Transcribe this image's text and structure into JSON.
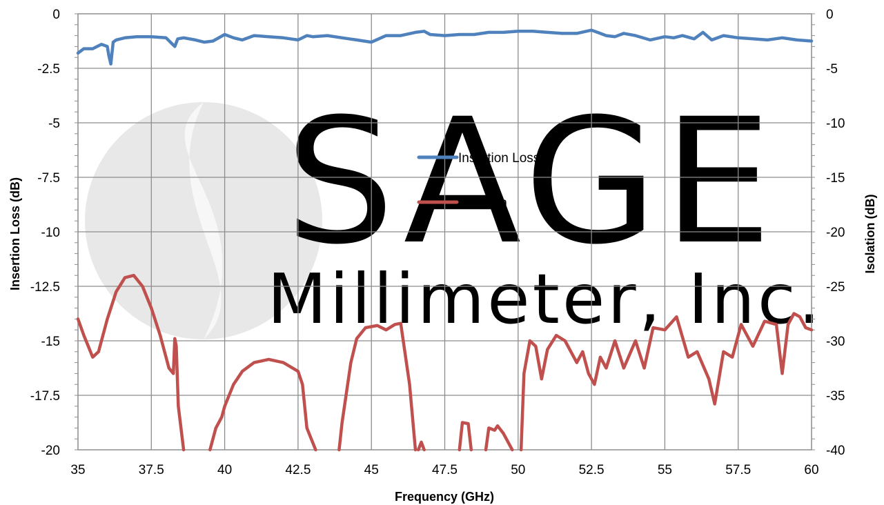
{
  "chart_data": {
    "type": "line",
    "xlabel": "Frequency (GHz)",
    "ylabel_left": "Insertion Loss (dB)",
    "ylabel_right": "Isolation (dB)",
    "xlim": [
      35,
      60
    ],
    "ylim_left": [
      -20,
      0
    ],
    "ylim_right": [
      -40,
      0
    ],
    "x_ticks": [
      "35",
      "37.5",
      "40",
      "42.5",
      "45",
      "47.5",
      "50",
      "52.5",
      "55",
      "57.5",
      "60"
    ],
    "y_ticks_left": [
      "0",
      "-2.5",
      "-5",
      "-7.5",
      "-10",
      "-12.5",
      "-15",
      "-17.5",
      "-20"
    ],
    "y_ticks_right": [
      "0",
      "-5",
      "-10",
      "-15",
      "-20",
      "-25",
      "-30",
      "-35",
      "-40"
    ],
    "grid": true,
    "legend_position": "center",
    "watermark": "SAGE Millimeter, Inc.",
    "series": [
      {
        "name": "Insertion Loss",
        "axis": "left",
        "color": "#4F81BD",
        "x": [
          35,
          35.2,
          35.5,
          35.8,
          36,
          36.05,
          36.12,
          36.2,
          36.3,
          36.6,
          37,
          37.5,
          38,
          38.3,
          38.4,
          38.6,
          39,
          39.3,
          39.6,
          40,
          40.3,
          40.6,
          41,
          41.5,
          42,
          42.5,
          42.8,
          43,
          43.5,
          44,
          44.5,
          45,
          45.5,
          46,
          46.5,
          46.8,
          47,
          47.5,
          48,
          48.5,
          49,
          49.5,
          50,
          50.5,
          51,
          51.5,
          52,
          52.5,
          52.8,
          53,
          53.3,
          53.6,
          54,
          54.5,
          55,
          55.3,
          55.6,
          56,
          56.3,
          56.6,
          57,
          57.5,
          58,
          58.5,
          59,
          59.5,
          60
        ],
        "y": [
          -1.8,
          -1.6,
          -1.6,
          -1.4,
          -1.5,
          -1.9,
          -2.3,
          -1.3,
          -1.2,
          -1.1,
          -1.05,
          -1.05,
          -1.1,
          -1.5,
          -1.15,
          -1.1,
          -1.2,
          -1.3,
          -1.25,
          -0.95,
          -1.1,
          -1.2,
          -1.0,
          -1.05,
          -1.1,
          -1.2,
          -1.0,
          -1.05,
          -1.0,
          -1.1,
          -1.2,
          -1.3,
          -1.0,
          -1.0,
          -0.85,
          -0.8,
          -0.95,
          -1.0,
          -0.95,
          -0.95,
          -0.85,
          -0.85,
          -0.8,
          -0.8,
          -0.85,
          -0.9,
          -0.9,
          -0.75,
          -0.9,
          -1.0,
          -1.05,
          -0.9,
          -1.0,
          -1.2,
          -1.05,
          -1.1,
          -1.0,
          -1.15,
          -0.85,
          -1.2,
          -1.0,
          -1.1,
          -1.15,
          -1.2,
          -1.1,
          -1.2,
          -1.25
        ]
      },
      {
        "name": "Isolation",
        "axis": "right",
        "color": "#C0504D",
        "segments": [
          {
            "x": [
              35,
              35.2,
              35.5,
              35.7,
              36,
              36.3,
              36.6,
              36.9,
              37.2,
              37.5,
              37.8,
              38.1,
              38.25,
              38.3,
              38.35,
              38.42,
              38.6
            ],
            "y": [
              -28,
              -29.5,
              -31.5,
              -31,
              -28,
              -25.5,
              -24.2,
              -24,
              -25,
              -27,
              -29.5,
              -32.5,
              -33,
              -29.8,
              -30.5,
              -36,
              -40
            ]
          },
          {
            "x": [
              39.5,
              39.7,
              39.9,
              40,
              40.3,
              40.6,
              41,
              41.5,
              42,
              42.5,
              42.65,
              42.8,
              43.1
            ],
            "y": [
              -40,
              -38,
              -37,
              -36,
              -34,
              -32.8,
              -32,
              -31.7,
              -32,
              -32.8,
              -34,
              -38,
              -40
            ]
          },
          {
            "x": [
              43.9,
              44,
              44.3,
              44.5,
              44.8,
              45.2,
              45.5,
              45.8,
              46,
              46.3,
              46.5
            ],
            "y": [
              -40,
              -37.5,
              -32,
              -29.8,
              -28.8,
              -28.6,
              -29,
              -28.5,
              -28.4,
              -34,
              -40
            ]
          },
          {
            "x": [
              46.6,
              46.7,
              46.8
            ],
            "y": [
              -40,
              -39.3,
              -40
            ]
          },
          {
            "x": [
              48,
              48.1,
              48.3,
              48.4
            ],
            "y": [
              -40,
              -37.5,
              -37.6,
              -40
            ]
          },
          {
            "x": [
              48.9,
              49,
              49.2,
              49.3,
              49.5,
              49.7,
              49.8
            ],
            "y": [
              -40,
              -38,
              -38.2,
              -37.8,
              -38.5,
              -39.5,
              -40
            ]
          },
          {
            "x": [
              50.1,
              50.2,
              50.4,
              50.6,
              50.8,
              51,
              51.3,
              51.6,
              52,
              52.2,
              52.4,
              52.6,
              52.8,
              53,
              53.3,
              53.6,
              54,
              54.3,
              54.6,
              55,
              55.4,
              55.8,
              56.1,
              56.5,
              56.7,
              57,
              57.3,
              57.6,
              58,
              58.4,
              58.8,
              59,
              59.2,
              59.4,
              59.6,
              59.8,
              60
            ],
            "y": [
              -40,
              -33,
              -30,
              -30.5,
              -33.5,
              -30.8,
              -29.5,
              -30,
              -32,
              -31,
              -33,
              -34,
              -31.5,
              -32.5,
              -30,
              -32.5,
              -30,
              -32.5,
              -28.8,
              -29,
              -27.8,
              -31.5,
              -31,
              -33.5,
              -35.8,
              -31,
              -31.5,
              -28.5,
              -30.5,
              -28.2,
              -28.5,
              -33,
              -28.5,
              -27.5,
              -27.8,
              -28.8,
              -29
            ]
          }
        ]
      }
    ]
  }
}
